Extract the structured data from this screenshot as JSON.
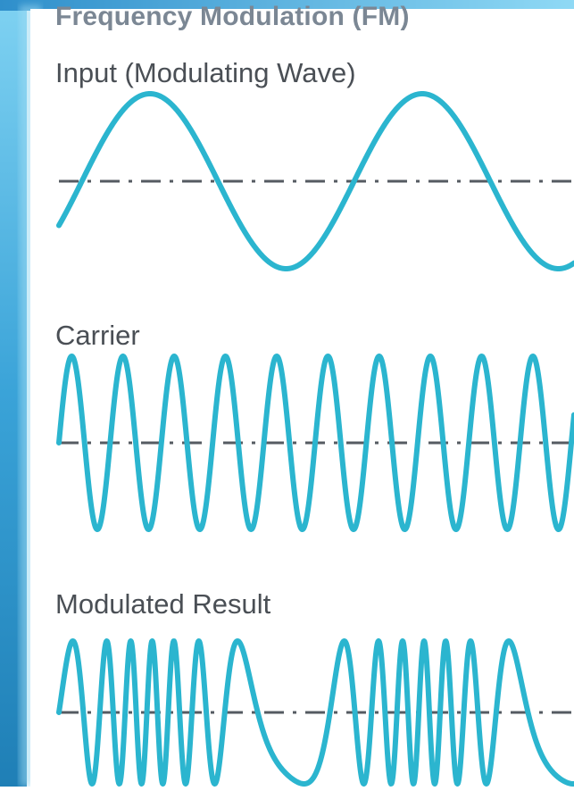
{
  "diagram": {
    "title": "Frequency Modulation (FM)",
    "panels": [
      {
        "label": "Input (Modulating Wave)"
      },
      {
        "label": "Carrier"
      },
      {
        "label": "Modulated Result"
      }
    ]
  },
  "colors": {
    "wave": "#2bb5cf",
    "axis": "#555b62",
    "frame_dark": "#1f7fb6",
    "frame_light": "#5fc3ec",
    "title": "#7b8794",
    "label": "#4a4f55"
  }
}
